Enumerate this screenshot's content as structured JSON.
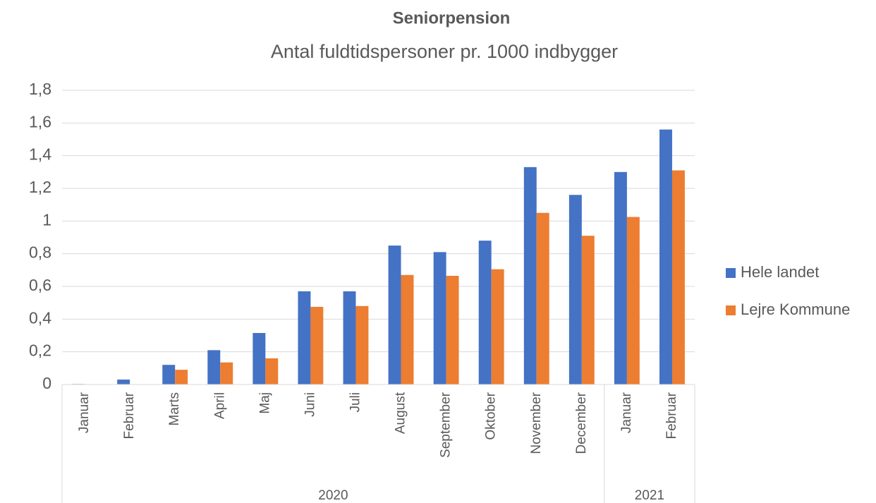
{
  "chart_data": {
    "type": "bar",
    "title": "Seniorpension",
    "subtitle": "Antal fuldtidspersoner pr. 1000 indbygger",
    "groups": [
      {
        "label": "2020",
        "categories": [
          "Januar",
          "Februar",
          "Marts",
          "April",
          "Maj",
          "Juni",
          "Juli",
          "August",
          "September",
          "Oktober",
          "November",
          "December"
        ]
      },
      {
        "label": "2021",
        "categories": [
          "Januar",
          "Februar"
        ]
      }
    ],
    "series": [
      {
        "name": "Hele landet",
        "color": "#4472c4",
        "values": [
          0.003,
          0.03,
          0.12,
          0.21,
          0.315,
          0.57,
          0.57,
          0.85,
          0.81,
          0.88,
          1.33,
          1.16,
          1.3,
          1.56
        ]
      },
      {
        "name": "Lejre Kommune",
        "color": "#ed7d31",
        "values": [
          0,
          0,
          0.09,
          0.135,
          0.16,
          0.475,
          0.48,
          0.67,
          0.665,
          0.705,
          1.05,
          0.91,
          1.025,
          1.31
        ]
      }
    ],
    "ylim": [
      0,
      1.8
    ],
    "yticks": [
      0,
      {
        "value": 0.2,
        "label": "0,2"
      },
      {
        "value": 0.4,
        "label": "0,4"
      },
      {
        "value": 0.6,
        "label": "0,6"
      },
      {
        "value": 0.8,
        "label": "0,8"
      },
      1,
      {
        "value": 1.2,
        "label": "1,2"
      },
      {
        "value": 1.4,
        "label": "1,4"
      },
      {
        "value": 1.6,
        "label": "1,6"
      },
      {
        "value": 1.8,
        "label": "1,8"
      }
    ],
    "grid": true,
    "legend": "right"
  }
}
